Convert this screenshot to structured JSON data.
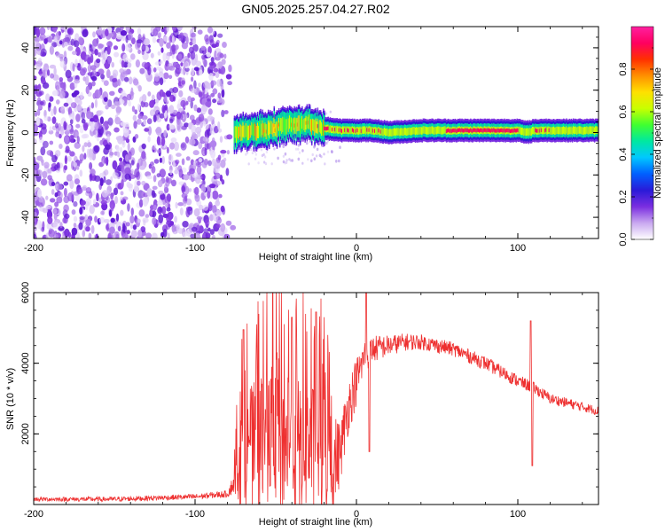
{
  "title": "GN05.2025.257.04.27.R02",
  "chart_data": [
    {
      "type": "heatmap",
      "name": "spectrogram",
      "xlabel": "Height of straight line (km)",
      "ylabel": "Frequency (Hz)",
      "xlim": [
        -200,
        150
      ],
      "ylim": [
        -50,
        50
      ],
      "xticks": [
        -200,
        -100,
        0,
        100
      ],
      "xtick_labels": [
        "-200",
        "-100",
        "0",
        "100"
      ],
      "yticks": [
        -40,
        -20,
        0,
        20,
        40
      ],
      "ytick_labels": [
        "-40",
        "-20",
        "0",
        "20",
        "40"
      ],
      "noise_region_x": [
        -200,
        -76
      ],
      "signal_ridge": {
        "x": [
          -76,
          -60,
          -40,
          -30,
          -20,
          -10,
          0,
          10,
          20,
          40,
          60,
          80,
          100,
          105,
          110,
          120,
          150
        ],
        "freq": [
          0,
          1,
          4,
          4,
          2,
          1,
          1,
          1,
          0,
          1,
          1,
          1,
          1,
          0,
          1,
          1,
          1
        ]
      },
      "colorbar": {
        "label": "Normalized spectral amplitude",
        "range": [
          0,
          1
        ],
        "ticks": [
          0,
          0.2,
          0.4,
          0.6,
          0.8
        ],
        "tick_labels": [
          "0.0",
          "0.2",
          "0.4",
          "0.6",
          "0.8"
        ],
        "colors": [
          "#ffffff",
          "#c9a8f0",
          "#7a2ee0",
          "#2a1ad8",
          "#0060ff",
          "#00c8ff",
          "#00e8a0",
          "#40ff30",
          "#c8ff00",
          "#ffe000",
          "#ff9000",
          "#ff3000",
          "#ff0060",
          "#ff20a0"
        ]
      }
    },
    {
      "type": "line",
      "name": "snr",
      "xlabel": "Height of straight line (km)",
      "ylabel": "SNR (10 * v/v)",
      "xlim": [
        -200,
        150
      ],
      "ylim": [
        0,
        6000
      ],
      "xticks": [
        -200,
        -100,
        0,
        100
      ],
      "xtick_labels": [
        "-200",
        "-100",
        "0",
        "100"
      ],
      "yticks": [
        2000,
        4000,
        6000
      ],
      "ytick_labels": [
        "2000",
        "4000",
        "6000"
      ],
      "color": "#ee3030",
      "envelope": {
        "x": [
          -200,
          -150,
          -100,
          -80,
          -76,
          -72,
          -60,
          -40,
          -20,
          -10,
          -5,
          0,
          5,
          10,
          20,
          30,
          40,
          60,
          80,
          100,
          110,
          120,
          150
        ],
        "base": [
          150,
          150,
          220,
          300,
          600,
          900,
          1000,
          800,
          600,
          1500,
          2800,
          3500,
          4200,
          4400,
          4500,
          4600,
          4600,
          4400,
          4000,
          3500,
          3300,
          3000,
          2650
        ],
        "amp": [
          60,
          70,
          80,
          100,
          300,
          1800,
          2200,
          2400,
          2200,
          900,
          800,
          700,
          500,
          400,
          300,
          250,
          220,
          200,
          200,
          180,
          170,
          150,
          130
        ]
      },
      "spikes": [
        {
          "x": 6,
          "y": 6000
        },
        {
          "x": 8,
          "y": 1500
        },
        {
          "x": 108,
          "y": 5200
        },
        {
          "x": 109,
          "y": 1100
        },
        {
          "x": -70,
          "y": 4950
        },
        {
          "x": -40,
          "y": 5300
        },
        {
          "x": -25,
          "y": 5450
        }
      ]
    }
  ]
}
